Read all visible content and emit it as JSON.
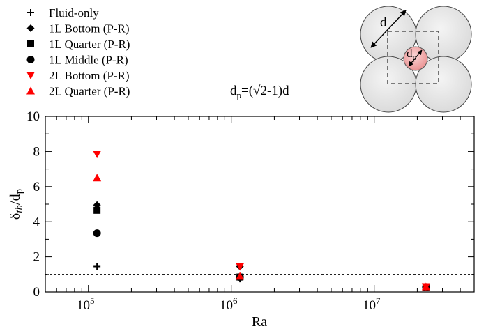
{
  "chart_data": {
    "type": "scatter",
    "xscale": "log",
    "xlim": [
      50000,
      50000000
    ],
    "ylim": [
      0,
      10
    ],
    "xlabel": "Ra",
    "ylabel": {
      "main": "δ",
      "sub1": "th",
      "mid": "/d",
      "sub2": "p"
    },
    "x_ticks": [
      {
        "value": 100000,
        "base": "10",
        "exp": "5"
      },
      {
        "value": 1000000,
        "base": "10",
        "exp": "6"
      },
      {
        "value": 10000000,
        "base": "10",
        "exp": "7"
      }
    ],
    "y_ticks": [
      0,
      2,
      4,
      6,
      8,
      10
    ],
    "reference_line": {
      "y": 1,
      "style": "dotted"
    },
    "annotation": {
      "main": "d",
      "sub": "p",
      "rest": "=(√2-1)d"
    },
    "series": [
      {
        "name": "Fluid-only",
        "marker": "plus",
        "color": "#000000",
        "points": [
          [
            115000,
            1.45
          ],
          [
            1150000,
            0.75
          ],
          [
            23000000,
            0.3
          ]
        ]
      },
      {
        "name": "1L Bottom (P-R)",
        "marker": "diamond",
        "color": "#000000",
        "points": [
          [
            115000,
            4.95
          ],
          [
            1150000,
            1.45
          ],
          [
            23000000,
            0.3
          ]
        ]
      },
      {
        "name": "1L Quarter (P-R)",
        "marker": "square",
        "color": "#000000",
        "points": [
          [
            115000,
            4.65
          ],
          [
            1150000,
            0.85
          ],
          [
            23000000,
            0.28
          ]
        ]
      },
      {
        "name": "1L Middle (P-R)",
        "marker": "circle",
        "color": "#000000",
        "points": [
          [
            115000,
            3.35
          ],
          [
            1150000,
            0.85
          ],
          [
            23000000,
            0.27
          ]
        ]
      },
      {
        "name": "2L Bottom (P-R)",
        "marker": "triangle-down",
        "color": "#ff0000",
        "points": [
          [
            115000,
            7.85
          ],
          [
            1150000,
            1.45
          ],
          [
            23000000,
            0.3
          ]
        ]
      },
      {
        "name": "2L Quarter (P-R)",
        "marker": "triangle-up",
        "color": "#ff0000",
        "points": [
          [
            115000,
            6.5
          ],
          [
            1150000,
            0.9
          ],
          [
            23000000,
            0.3
          ]
        ]
      }
    ]
  },
  "inset": {
    "d_label": "d",
    "dp_label": {
      "main": "d",
      "sub": "p"
    }
  },
  "colors": {
    "sphere_fill": "#e6e6e6",
    "small_sphere_fill": "#f2a7a7",
    "black": "#000000",
    "red": "#ff0000"
  }
}
